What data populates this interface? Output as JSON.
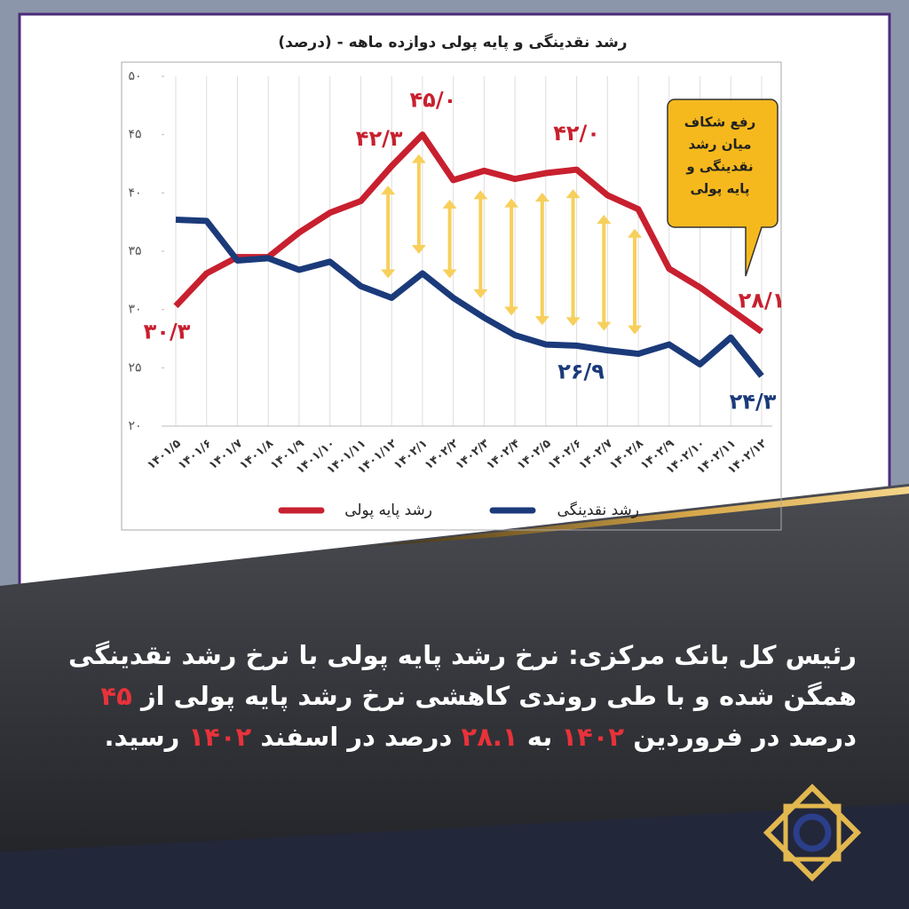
{
  "chart_data": {
    "type": "line",
    "title": "رشد نقدینگی و پایه پولی دوازده ماهه - (درصد)",
    "categories": [
      "۱۴۰۱/۵",
      "۱۴۰۱/۶",
      "۱۴۰۱/۷",
      "۱۴۰۱/۸",
      "۱۴۰۱/۹",
      "۱۴۰۱/۱۰",
      "۱۴۰۱/۱۱",
      "۱۴۰۱/۱۲",
      "۱۴۰۲/۱",
      "۱۴۰۲/۲",
      "۱۴۰۲/۳",
      "۱۴۰۲/۴",
      "۱۴۰۲/۵",
      "۱۴۰۲/۶",
      "۱۴۰۲/۷",
      "۱۴۰۲/۸",
      "۱۴۰۲/۹",
      "۱۴۰۲/۱۰",
      "۱۴۰۲/۱۱",
      "۱۴۰۲/۱۲"
    ],
    "series": [
      {
        "name": "رشد پایه پولی",
        "color": "#c8202f",
        "values": [
          30.3,
          33.1,
          34.5,
          34.5,
          36.6,
          38.3,
          39.3,
          42.3,
          45.0,
          41.1,
          41.9,
          41.2,
          41.7,
          42.0,
          39.8,
          38.6,
          33.5,
          31.9,
          30.0,
          28.1
        ],
        "value_labels": [
          "۳۰/۳",
          null,
          null,
          null,
          null,
          null,
          null,
          "۴۲/۳",
          "۴۵/۰",
          null,
          null,
          null,
          null,
          "۴۲/۰",
          null,
          null,
          null,
          null,
          null,
          "۲۸/۱"
        ]
      },
      {
        "name": "رشد نقدینگی",
        "color": "#1b3a7a",
        "values": [
          37.7,
          37.6,
          34.2,
          34.4,
          33.4,
          34.1,
          32.0,
          31.0,
          33.1,
          31.0,
          29.3,
          27.8,
          27.0,
          26.9,
          26.5,
          26.2,
          27.0,
          25.3,
          27.6,
          24.3
        ],
        "value_labels": [
          null,
          null,
          null,
          null,
          null,
          null,
          null,
          null,
          null,
          null,
          null,
          null,
          null,
          "۲۶/۹",
          null,
          null,
          null,
          null,
          null,
          "۲۴/۳"
        ]
      }
    ],
    "ylim": [
      20,
      50
    ],
    "yticks": [
      {
        "value": 20,
        "label": "۲۰"
      },
      {
        "value": 25,
        "label": "۲۵"
      },
      {
        "value": 30,
        "label": "۳۰"
      },
      {
        "value": 35,
        "label": "۳۵"
      },
      {
        "value": 40,
        "label": "۴۰"
      },
      {
        "value": 45,
        "label": "۴۵"
      },
      {
        "value": 50,
        "label": "۵۰"
      }
    ],
    "grid": true,
    "annotation": [
      "رفع شکاف",
      "میان رشد",
      "نقدینگی و",
      "پایه پولی"
    ]
  },
  "caption": [
    "رئیس کل بانک مرکزی: نرخ رشد پایه پولی با نرخ رشد نقدینگی همگن شده و با طی روندی کاهشی نرخ رشد پایه پولی از",
    "۴۵",
    "درصد در فروردین",
    "۱۴۰۲",
    "به",
    "۲۸.۱",
    "درصد در اسفند",
    "۱۴۰۲",
    "رسید."
  ]
}
